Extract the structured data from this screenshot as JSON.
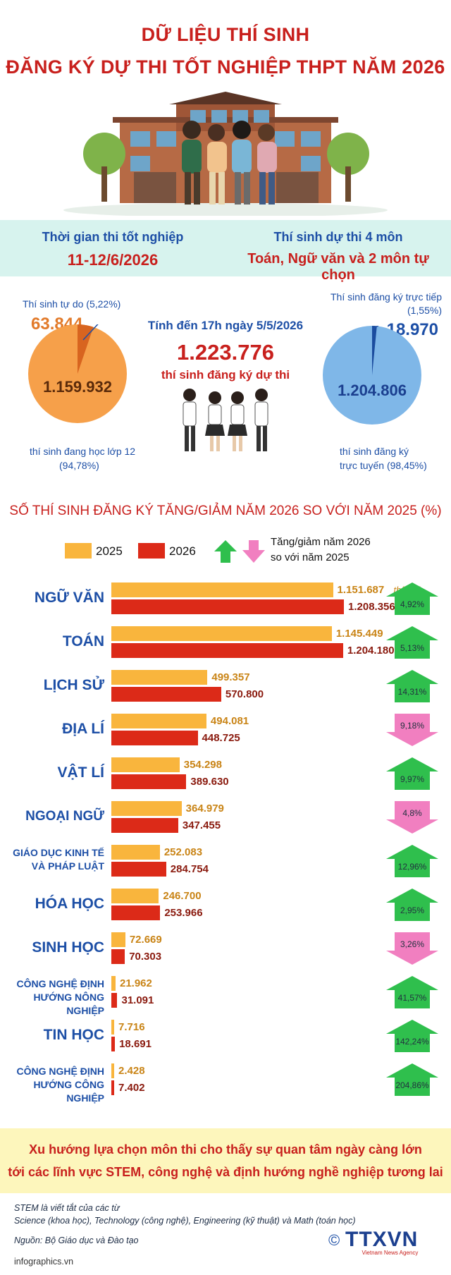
{
  "header": {
    "title_line1": "DỮ LIỆU THÍ SINH",
    "title_line2": "ĐĂNG KÝ DỰ THI TỐT NGHIỆP THPT NĂM 2026"
  },
  "info_band": {
    "left_label": "Thời gian thi tốt nghiệp",
    "left_value": "11-12/6/2026",
    "right_label": "Thí sinh dự thi 4 môn",
    "right_value": "Toán, Ngữ văn và 2 môn tự chọn"
  },
  "summary": {
    "pie_left": {
      "small_label": "Thí sinh tự do (5,22%)",
      "small_value": "63.844",
      "big_value": "1.159.932",
      "big_label_line1": "thí sinh đang học lớp 12",
      "big_label_line2": "(94,78%)",
      "small_fraction": 0.0522,
      "color_big": "#f6a04a",
      "color_small": "#d8641f"
    },
    "center": {
      "date_line": "Tính đến 17h ngày 5/5/2026",
      "total": "1.223.776",
      "total_label": "thí sinh đăng ký dự thi"
    },
    "pie_right": {
      "small_label_line1": "Thí sinh đăng ký trực tiếp",
      "small_label_line2": "(1,55%)",
      "small_value": "18.970",
      "big_value": "1.204.806",
      "big_label_line1": "thí sinh đăng ký",
      "big_label_line2": "trực tuyến (98,45%)",
      "small_fraction": 0.0155,
      "color_big": "#7fb7e8",
      "color_small": "#1b4c9e"
    }
  },
  "chart_data": {
    "type": "bar",
    "title": "SỐ THÍ SINH ĐĂNG KÝ TĂNG/GIẢM NĂM 2026 SO VỚI NĂM 2025 (%)",
    "legend": {
      "series_2025": "2025",
      "series_2026": "2026",
      "change_line1": "Tăng/giảm năm 2026",
      "change_line2": "so với năm 2025"
    },
    "unit_note": "thí sinh",
    "colors": {
      "2025": "#f9b53d",
      "2026": "#dc2a18",
      "up": "#2fbf4d",
      "down": "#f17fc0"
    },
    "categories": [
      "NGỮ VĂN",
      "TOÁN",
      "LỊCH SỬ",
      "ĐỊA LÍ",
      "VẬT LÍ",
      "NGOẠI NGỮ",
      "GIÁO DỤC KINH TẾ VÀ PHÁP LUẬT",
      "HÓA HỌC",
      "SINH HỌC",
      "CÔNG NGHỆ ĐỊNH HƯỚNG NÔNG NGHIỆP",
      "TIN HỌC",
      "CÔNG NGHỆ ĐỊNH HƯỚNG CÔNG NGHIỆP"
    ],
    "category_lines": [
      [
        "NGỮ VĂN"
      ],
      [
        "TOÁN"
      ],
      [
        "LỊCH SỬ"
      ],
      [
        "ĐỊA LÍ"
      ],
      [
        "VẬT LÍ"
      ],
      [
        "NGOẠI NGỮ"
      ],
      [
        "GIÁO DỤC KINH TẾ",
        "VÀ PHÁP LUẬT"
      ],
      [
        "HÓA HỌC"
      ],
      [
        "SINH HỌC"
      ],
      [
        "CÔNG NGHỆ ĐỊNH",
        "HƯỚNG NÔNG NGHIỆP"
      ],
      [
        "TIN HỌC"
      ],
      [
        "CÔNG NGHỆ ĐỊNH",
        "HƯỚNG CÔNG NGHIỆP"
      ]
    ],
    "series": [
      {
        "name": "2025",
        "values": [
          1151687,
          1145449,
          499357,
          494081,
          354298,
          364979,
          252083,
          246700,
          72669,
          21962,
          7716,
          2428
        ]
      },
      {
        "name": "2026",
        "values": [
          1208356,
          1204180,
          570800,
          448725,
          389630,
          347455,
          284754,
          253966,
          70303,
          31091,
          18691,
          7402
        ]
      }
    ],
    "labels_2025": [
      "1.151.687",
      "1.145.449",
      "499.357",
      "494.081",
      "354.298",
      "364.979",
      "252.083",
      "246.700",
      "72.669",
      "21.962",
      "7.716",
      "2.428"
    ],
    "labels_2026": [
      "1.208.356",
      "1.204.180",
      "570.800",
      "448.725",
      "389.630",
      "347.455",
      "284.754",
      "253.966",
      "70.303",
      "31.091",
      "18.691",
      "7.402"
    ],
    "change_pct": [
      4.92,
      5.13,
      14.31,
      -9.18,
      9.97,
      -4.8,
      12.96,
      2.95,
      -3.26,
      41.57,
      142.24,
      204.86
    ],
    "change_labels": [
      "4,92%",
      "5,13%",
      "14,31%",
      "9,18%",
      "9,97%",
      "4,8%",
      "12,96%",
      "2,95%",
      "3,26%",
      "41,57%",
      "142,24%",
      "204,86%"
    ],
    "change_direction": [
      "up",
      "up",
      "up",
      "down",
      "up",
      "down",
      "up",
      "up",
      "down",
      "up",
      "up",
      "up"
    ]
  },
  "footer": {
    "line1": "Xu hướng lựa chọn môn thi cho thấy sự quan tâm ngày càng lớn",
    "line2": "tới các lĩnh vực STEM, công nghệ và định hướng nghề nghiệp tương lai",
    "note_line1": "STEM là viết tắt của các từ",
    "note_line2": "Science (khoa học), Technology (công nghệ), Engineering (kỹ thuật) và Math (toán học)",
    "source": "Nguồn: Bộ Giáo dục và Đào tạo",
    "site": "infographics.vn",
    "brand": "TTXVN",
    "brand_sub": "Vietnam News Agency",
    "copyright": "©"
  }
}
